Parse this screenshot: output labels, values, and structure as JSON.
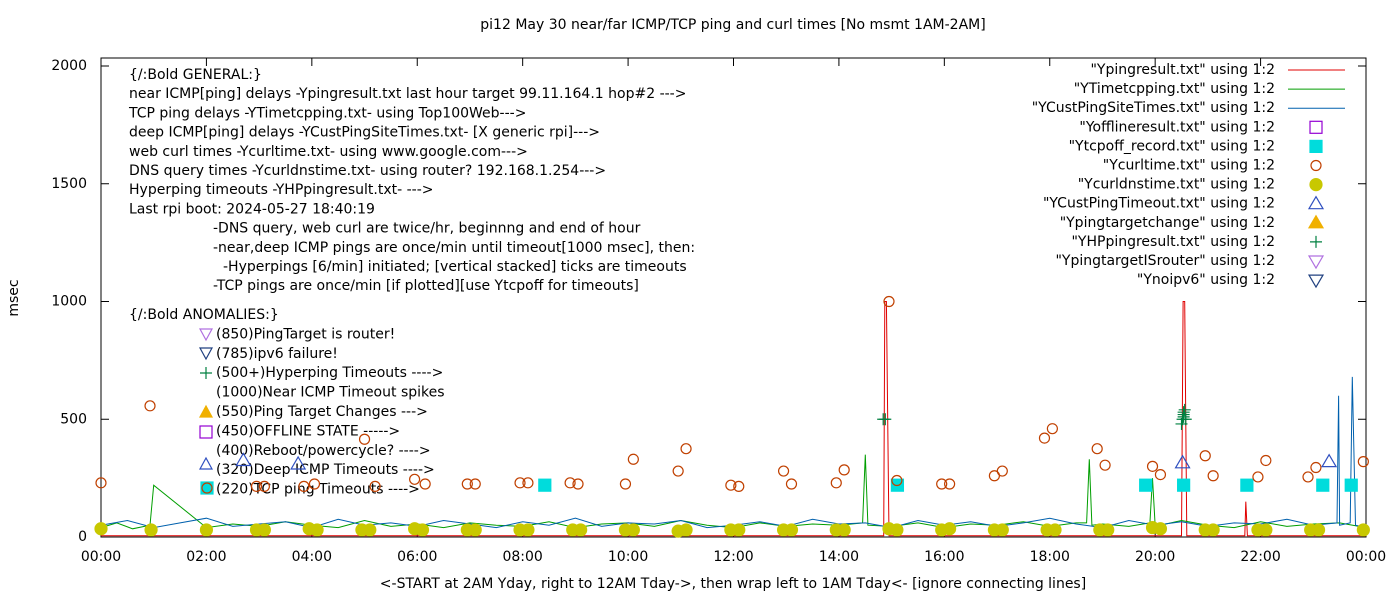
{
  "chart_data": {
    "type": "line",
    "title": "pi12 May 30  near/far ICMP/TCP ping and curl times [No msmt 1AM-2AM]",
    "xlabel": "<-START at 2AM Yday, right to 12AM Tday->, then wrap left to 1AM Tday<- [ignore connecting lines]",
    "ylabel": "msec",
    "xlim": [
      0,
      24
    ],
    "ylim": [
      0,
      2000
    ],
    "xticks": [
      {
        "value": 0,
        "label": "00:00"
      },
      {
        "value": 2,
        "label": "02:00"
      },
      {
        "value": 4,
        "label": "04:00"
      },
      {
        "value": 6,
        "label": "06:00"
      },
      {
        "value": 8,
        "label": "08:00"
      },
      {
        "value": 10,
        "label": "10:00"
      },
      {
        "value": 12,
        "label": "12:00"
      },
      {
        "value": 14,
        "label": "14:00"
      },
      {
        "value": 16,
        "label": "16:00"
      },
      {
        "value": 18,
        "label": "18:00"
      },
      {
        "value": 20,
        "label": "20:00"
      },
      {
        "value": 22,
        "label": "22:00"
      },
      {
        "value": 24,
        "label": "00:00"
      }
    ],
    "yticks": [
      0,
      500,
      1000,
      1500,
      2000
    ],
    "legend": "top-right",
    "annotations": [
      "{/:Bold GENERAL:}",
      "near ICMP[ping] delays -Ypingresult.txt last hour target 99.11.164.1 hop#2 --->",
      "TCP ping delays -YTimetcpping.txt- using Top100Web--->",
      "deep ICMP[ping] delays -YCustPingSiteTimes.txt- [X generic rpi]--->",
      "web curl times -Ycurltime.txt- using www.google.com--->",
      "DNS query times -Ycurldnstime.txt- using router? 192.168.1.254--->",
      "Hyperping timeouts -YHPpingresult.txt- --->",
      "Last rpi boot: 2024-05-27 18:40:19",
      "-DNS query, web curl are twice/hr, beginnng and end of hour",
      "-near,deep ICMP pings are once/min until timeout[1000 msec], then:",
      "-Hyperpings [6/min] initiated; [vertical stacked] ticks are timeouts",
      "-TCP pings are once/min [if plotted][use Ytcpoff for timeouts]",
      "{/:Bold ANOMALIES:}",
      "(850)PingTarget is router!",
      "(785)ipv6 failure!",
      "(500+)Hyperping Timeouts ---->",
      "(1000)Near ICMP Timeout spikes",
      "(550)Ping Target Changes --->",
      "(450)OFFLINE STATE ----->",
      "(400)Reboot/powercycle? ---->",
      "(320)Deep ICMP Timeouts ---->",
      "(220)TCP ping Timeouts ---->"
    ],
    "series": [
      {
        "name": "\"Ypingresult.txt\" using 1:2",
        "color": "#e00000",
        "marker": "line",
        "x": [
          0,
          14.85,
          14.87,
          14.9,
          14.95,
          20.5,
          20.53,
          20.56,
          20.6,
          21.7,
          21.72,
          21.75,
          24
        ],
        "values": [
          5,
          5,
          1000,
          1000,
          5,
          5,
          1000,
          1000,
          5,
          5,
          150,
          5,
          5
        ]
      },
      {
        "name": "\"YTimetcpping.txt\" using 1:2",
        "color": "#009e00",
        "marker": "line",
        "x": [
          0,
          0.3,
          0.6,
          0.93,
          1.0,
          2,
          2.5,
          3,
          3.5,
          4,
          4.5,
          5,
          5.5,
          6,
          6.5,
          7,
          7.5,
          8,
          8.5,
          9,
          9.5,
          10,
          10.5,
          11,
          11.5,
          12,
          12.5,
          13,
          13.5,
          14,
          14.45,
          14.5,
          14.55,
          15,
          15.5,
          16,
          16.5,
          17,
          17.5,
          18,
          18.5,
          18.7,
          18.75,
          18.8,
          19,
          19.5,
          19.9,
          19.95,
          20,
          20.5,
          21,
          21.5,
          22,
          22.5,
          23,
          23.5,
          24
        ],
        "values": [
          40,
          60,
          35,
          50,
          220,
          40,
          55,
          45,
          65,
          50,
          40,
          70,
          45,
          55,
          40,
          60,
          50,
          45,
          65,
          40,
          55,
          60,
          45,
          70,
          50,
          40,
          60,
          45,
          55,
          50,
          60,
          350,
          50,
          45,
          60,
          40,
          55,
          50,
          65,
          45,
          60,
          60,
          330,
          50,
          55,
          45,
          60,
          250,
          45,
          70,
          50,
          40,
          65,
          45,
          55,
          60,
          40
        ]
      },
      {
        "name": "\"YCustPingSiteTimes.txt\" using 1:2",
        "color": "#0060ad",
        "marker": "line",
        "x": [
          0,
          0.5,
          1,
          1.5,
          2,
          2.5,
          3,
          3.5,
          4,
          4.5,
          5,
          5.5,
          6,
          6.5,
          7,
          7.5,
          8,
          8.5,
          9,
          9.5,
          10,
          10.5,
          11,
          11.5,
          12,
          12.5,
          13,
          13.5,
          14,
          14.5,
          15,
          15.5,
          16,
          16.5,
          17,
          17.5,
          18,
          18.5,
          19,
          19.5,
          20,
          20.5,
          21,
          21.5,
          22,
          22.5,
          23,
          23.45,
          23.48,
          23.5,
          23.7,
          23.74,
          23.8,
          24
        ],
        "values": [
          50,
          70,
          40,
          60,
          80,
          45,
          55,
          65,
          40,
          75,
          50,
          60,
          45,
          70,
          55,
          40,
          65,
          50,
          80,
          45,
          60,
          55,
          70,
          40,
          50,
          65,
          45,
          75,
          55,
          60,
          40,
          70,
          50,
          65,
          45,
          60,
          80,
          55,
          40,
          70,
          50,
          65,
          45,
          60,
          55,
          75,
          50,
          60,
          600,
          50,
          60,
          680,
          50,
          40
        ]
      },
      {
        "name": "\"Yofflineresult.txt\" using 1:2",
        "color": "#9400d3",
        "marker": "square-open",
        "x": [],
        "values": []
      },
      {
        "name": "\"Ytcpoff_record.txt\" using 1:2",
        "color": "#00dcdc",
        "marker": "square",
        "x": [
          8.42,
          15.11,
          19.82,
          20.54,
          21.74,
          23.18,
          23.72
        ],
        "values": [
          220,
          220,
          220,
          220,
          220,
          220,
          220
        ]
      },
      {
        "name": "\"Ycurltime.txt\" using 1:2",
        "color": "#c04000",
        "marker": "circle-open",
        "x": [
          0,
          0.93,
          2.95,
          3.1,
          3.85,
          4.05,
          5.0,
          5.2,
          5.95,
          6.15,
          6.95,
          7.1,
          7.95,
          8.1,
          8.9,
          9.05,
          9.95,
          10.1,
          10.95,
          11.1,
          11.95,
          12.1,
          12.95,
          13.1,
          13.95,
          14.1,
          14.95,
          15.1,
          15.95,
          16.1,
          16.95,
          17.1,
          17.9,
          18.05,
          18.9,
          19.05,
          19.95,
          20.1,
          20.95,
          21.1,
          21.95,
          22.1,
          22.9,
          23.05,
          23.95
        ],
        "values": [
          230,
          557,
          215,
          215,
          215,
          225,
          415,
          215,
          245,
          225,
          225,
          225,
          230,
          230,
          230,
          225,
          225,
          330,
          280,
          375,
          220,
          215,
          280,
          225,
          230,
          285,
          1000,
          240,
          225,
          225,
          260,
          280,
          420,
          460,
          375,
          305,
          300,
          265,
          345,
          260,
          255,
          325,
          255,
          295,
          320
        ]
      },
      {
        "name": "\"Ycurldnstime.txt\" using 1:2",
        "color": "#c8c800",
        "marker": "circle",
        "x": [
          0,
          0.95,
          2.0,
          2.95,
          3.1,
          3.95,
          4.1,
          4.95,
          5.1,
          5.95,
          6.1,
          6.95,
          7.1,
          7.95,
          8.1,
          8.95,
          9.1,
          9.95,
          10.1,
          10.95,
          11.1,
          11.95,
          12.1,
          12.95,
          13.1,
          13.95,
          14.1,
          14.95,
          15.1,
          15.95,
          16.1,
          16.95,
          17.1,
          17.95,
          18.1,
          18.95,
          19.1,
          19.95,
          20.1,
          20.95,
          21.1,
          21.95,
          22.1,
          22.95,
          23.1,
          23.95
        ],
        "values": [
          35,
          30,
          30,
          30,
          30,
          35,
          30,
          30,
          30,
          35,
          30,
          30,
          30,
          30,
          30,
          30,
          30,
          30,
          30,
          25,
          30,
          30,
          30,
          30,
          30,
          30,
          30,
          35,
          30,
          30,
          35,
          30,
          30,
          30,
          30,
          30,
          30,
          40,
          35,
          30,
          30,
          30,
          30,
          30,
          30,
          30
        ]
      },
      {
        "name": "\"YCustPingTimeout.txt\" using 1:2",
        "color": "#3050c0",
        "marker": "triangle-open",
        "x": [
          2.7,
          3.74,
          20.52,
          23.3
        ],
        "values": [
          325,
          310,
          315,
          320
        ]
      },
      {
        "name": "\"Ypingtargetchange\" using 1:2",
        "color": "#f0b000",
        "marker": "triangle",
        "x": [],
        "values": []
      },
      {
        "name": "\"YHPpingresult.txt\" using 1:2",
        "color": "#008040",
        "marker": "plus",
        "x": [
          14.84,
          14.88,
          20.5,
          20.52,
          20.54,
          20.56,
          20.58,
          20.54,
          20.54
        ],
        "values": [
          500,
          500,
          480,
          500,
          520,
          540,
          500,
          510,
          530
        ]
      },
      {
        "name": "\"YpingtargetISrouter\" using 1:2",
        "color": "#b070e0",
        "marker": "triangle-down-open",
        "x": [],
        "values": []
      },
      {
        "name": "\"Ynoipv6\" using 1:2",
        "color": "#204080",
        "marker": "triangle-down-open",
        "x": [],
        "values": []
      }
    ]
  }
}
